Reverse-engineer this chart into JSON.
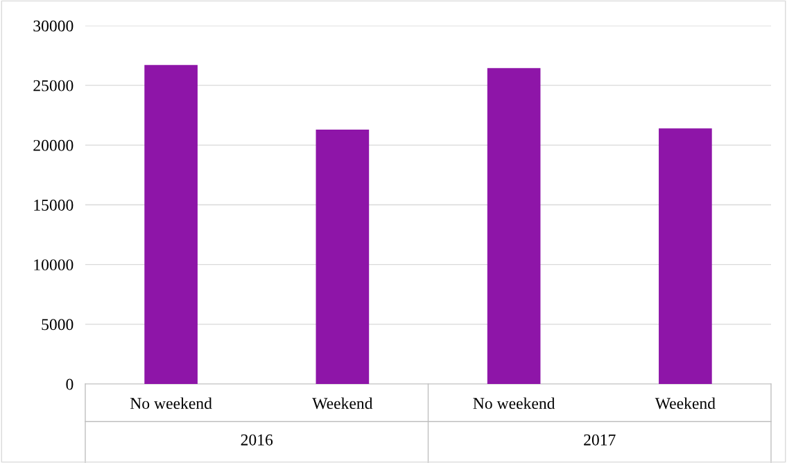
{
  "chart_data": {
    "type": "bar",
    "categories": [
      "No weekend",
      "Weekend",
      "No weekend",
      "Weekend"
    ],
    "values": [
      26700,
      21300,
      26450,
      21400
    ],
    "color": "#8e15a8",
    "ylim": [
      0,
      30000
    ],
    "yticks": [
      0,
      5000,
      10000,
      15000,
      20000,
      25000,
      30000
    ],
    "grid": "y",
    "annotations": [
      "2016",
      "2017"
    ]
  }
}
